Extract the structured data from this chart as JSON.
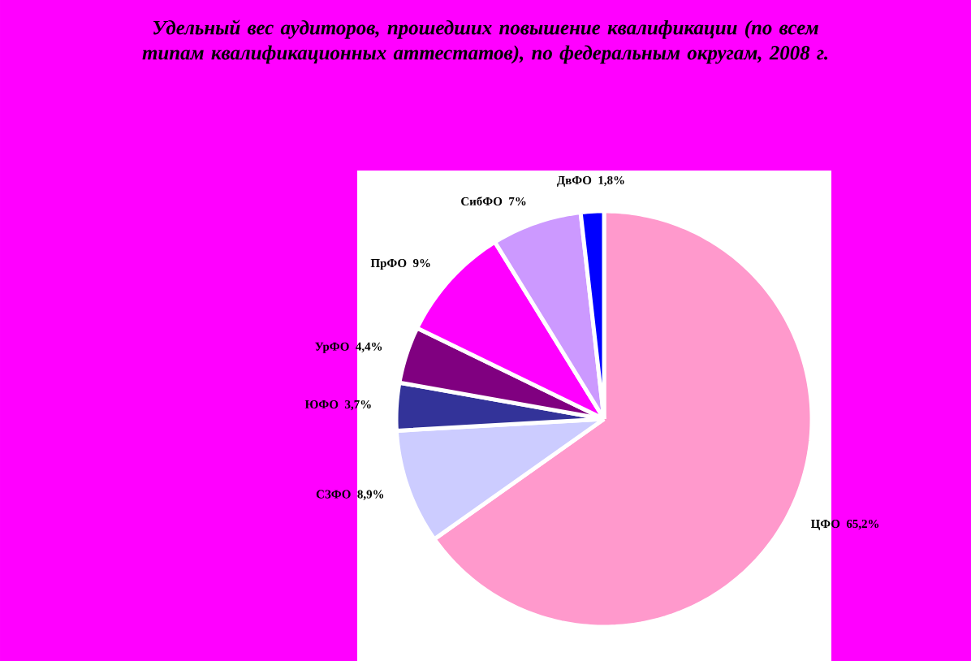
{
  "chart_data": {
    "type": "pie",
    "title": "Удельный вес аудиторов, прошедших повышение квалификации (по всем типам квалификационных аттестатов), по федеральным округам, 2008 г.",
    "categories": [
      "ЦФО",
      "СЗФО",
      "ЮФО",
      "УрФО",
      "ПрФО",
      "СибФО",
      "ДвФО"
    ],
    "values": [
      65.2,
      8.9,
      3.7,
      4.4,
      9,
      7,
      1.8
    ],
    "value_labels": [
      "65,2%",
      "8,9%",
      "3,7%",
      "4,4%",
      "9%",
      "7%",
      "1,8%"
    ],
    "colors": [
      "#ff99cc",
      "#ccccff",
      "#333399",
      "#800080",
      "#ff00ff",
      "#cc99ff",
      "#0000ff"
    ]
  }
}
